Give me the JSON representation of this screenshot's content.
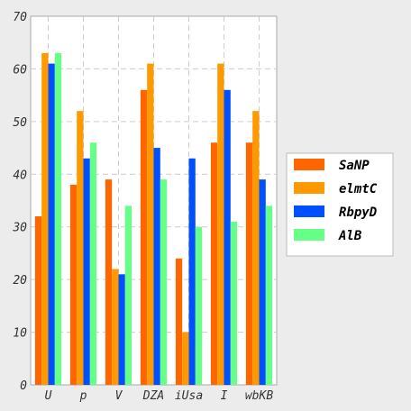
{
  "chart_data": {
    "type": "bar",
    "categories": [
      "U",
      "p",
      "V",
      "DZA",
      "iUsa",
      "I",
      "wbKB"
    ],
    "series": [
      {
        "name": "SaNP",
        "color": "#ff6600",
        "values": [
          32,
          38,
          39,
          56,
          24,
          46,
          46
        ]
      },
      {
        "name": "elmtC",
        "color": "#ff9900",
        "values": [
          63,
          52,
          22,
          61,
          10,
          61,
          52
        ]
      },
      {
        "name": "RbpyD",
        "color": "#0050ff",
        "values": [
          61,
          43,
          21,
          45,
          43,
          56,
          39
        ]
      },
      {
        "name": "AlB",
        "color": "#66ff88",
        "values": [
          63,
          46,
          34,
          39,
          30,
          31,
          34
        ]
      }
    ],
    "ylim": [
      0,
      70
    ],
    "yticks": [
      "0",
      "10",
      "20",
      "30",
      "40",
      "50",
      "60",
      "70"
    ],
    "grid": true,
    "legend_position": "right"
  }
}
